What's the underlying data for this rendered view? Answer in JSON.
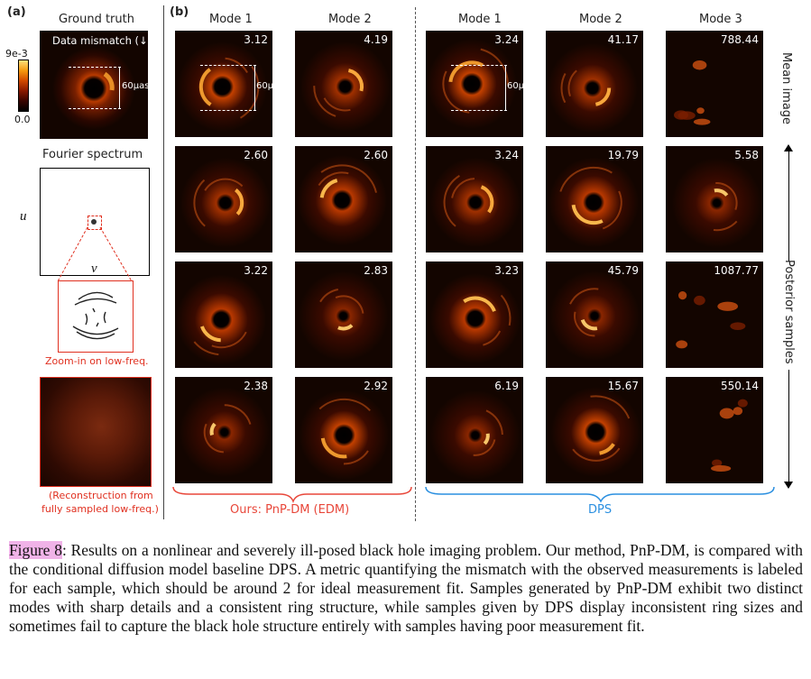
{
  "panel_a": {
    "tag": "(a)",
    "gt_title": "Ground truth",
    "mismatch_label": "Data mismatch (↓)",
    "colorbar_max": "9e-3",
    "colorbar_min": "0.0",
    "scale_label": "60μas",
    "fourier_title": "Fourier spectrum",
    "axis_u": "u",
    "axis_v": "v",
    "zoom_caption": "Zoom-in on low-freq.",
    "recon_caption_1": "(Reconstruction from",
    "recon_caption_2": "fully sampled low-freq.)"
  },
  "panel_b": {
    "tag": "(b)",
    "ours_modes": [
      "Mode 1",
      "Mode 2"
    ],
    "dps_modes": [
      "Mode 1",
      "Mode 2",
      "Mode 3"
    ],
    "ours_label": "Ours: PnP-DM (EDM)",
    "dps_label": "DPS",
    "row_label_mean": "Mean image",
    "row_label_posterior": "Posterior samples",
    "scale_label": "60μas",
    "metrics": {
      "ours": [
        [
          "3.12",
          "4.19"
        ],
        [
          "2.60",
          "2.60"
        ],
        [
          "3.22",
          "2.83"
        ],
        [
          "2.38",
          "2.92"
        ]
      ],
      "dps": [
        [
          "3.24",
          "41.17",
          "788.44"
        ],
        [
          "3.24",
          "19.79",
          "5.58"
        ],
        [
          "3.23",
          "45.79",
          "1087.77"
        ],
        [
          "6.19",
          "15.67",
          "550.14"
        ]
      ]
    }
  },
  "caption": {
    "fig_label": "Figure 8",
    "text": ": Results on a nonlinear and severely ill-posed black hole imaging problem. Our method, PnP-DM, is compared with the conditional diffusion model baseline DPS. A metric quantifying the mismatch with the observed measurements is labeled for each sample, which should be around 2 for ideal measurement fit. Samples generated by PnP-DM exhibit two distinct modes with sharp details and a consistent ring structure, while samples given by DPS display inconsistent ring sizes and sometimes fail to capture the black hole structure entirely with samples having poor measurement fit."
  },
  "colors": {
    "ours_accent": "#e8473a",
    "dps_accent": "#2a8fe0",
    "zoom_accent": "#e03020"
  }
}
